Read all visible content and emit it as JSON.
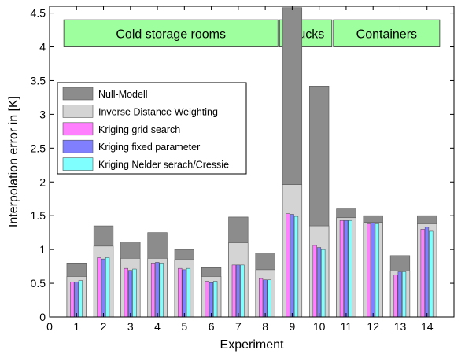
{
  "chart_data": {
    "type": "bar",
    "title": "",
    "xlabel": "Experiment",
    "ylabel": "Interpolation error in [K]",
    "xlim": [
      0,
      15
    ],
    "ylim": [
      0,
      4.6
    ],
    "x_ticks": [
      "0",
      "1",
      "2",
      "3",
      "4",
      "5",
      "6",
      "7",
      "8",
      "9",
      "10",
      "11",
      "12",
      "13",
      "14"
    ],
    "y_ticks": [
      "0",
      "0.5",
      "1",
      "1.5",
      "2",
      "2.5",
      "3",
      "3.5",
      "4",
      "4.5"
    ],
    "grid": false,
    "legend_position": "center-left",
    "categories": [
      "1",
      "2",
      "3",
      "4",
      "5",
      "6",
      "7",
      "8",
      "9",
      "10",
      "11",
      "12",
      "13",
      "14"
    ],
    "series": [
      {
        "name": "Null-Modell",
        "color": "#8c8c8c",
        "values": [
          0.8,
          1.35,
          1.11,
          1.25,
          1.0,
          0.73,
          1.48,
          0.95,
          4.58,
          3.42,
          1.6,
          1.5,
          0.91,
          1.5
        ]
      },
      {
        "name": "Inverse Distance Weighting",
        "color": "#d4d4d4",
        "values": [
          0.6,
          1.05,
          0.87,
          0.87,
          0.85,
          0.6,
          1.1,
          0.7,
          1.96,
          1.35,
          1.47,
          1.4,
          0.68,
          1.38
        ]
      },
      {
        "name": "Kriging grid search",
        "color": "#ff7fff",
        "values": [
          0.52,
          0.88,
          0.72,
          0.8,
          0.72,
          0.53,
          0.77,
          0.57,
          1.53,
          1.06,
          1.43,
          1.38,
          0.62,
          1.3
        ]
      },
      {
        "name": "Kriging fixed parameter",
        "color": "#8080ff",
        "values": [
          0.52,
          0.86,
          0.69,
          0.81,
          0.7,
          0.51,
          0.77,
          0.55,
          1.52,
          1.03,
          1.43,
          1.39,
          0.67,
          1.33
        ]
      },
      {
        "name": "Kriging Nelder serach/Cressie",
        "color": "#80ffff",
        "values": [
          0.54,
          0.88,
          0.71,
          0.8,
          0.72,
          0.53,
          0.77,
          0.55,
          1.49,
          1.0,
          1.43,
          1.38,
          0.67,
          1.27
        ]
      }
    ],
    "groups": [
      {
        "label": "Cold storage rooms",
        "from": 0.5,
        "to": 8.5
      },
      {
        "label": "Trucks",
        "from": 8.5,
        "to": 10.5
      },
      {
        "label": "Containers",
        "from": 10.5,
        "to": 14.5
      }
    ],
    "group_band": [
      4.0,
      4.4
    ],
    "group_color": "#9dff9d"
  }
}
